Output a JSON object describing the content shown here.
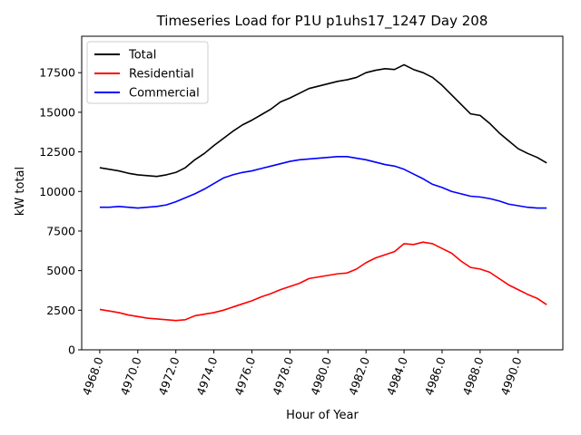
{
  "chart_data": {
    "type": "line",
    "title": "Timeseries Load for P1U p1uhs17_1247  Day 208",
    "xlabel": "Hour of Year",
    "ylabel": "kW total",
    "xlim": [
      4967.05,
      4992.35
    ],
    "ylim": [
      0,
      19800
    ],
    "xticks": [
      4968,
      4970,
      4972,
      4974,
      4976,
      4978,
      4980,
      4982,
      4984,
      4986,
      4988,
      4990
    ],
    "xtick_labels": [
      "4968.0",
      "4970.0",
      "4972.0",
      "4974.0",
      "4976.0",
      "4978.0",
      "4980.0",
      "4982.0",
      "4984.0",
      "4986.0",
      "4988.0",
      "4990.0"
    ],
    "yticks": [
      0,
      2500,
      5000,
      7500,
      10000,
      12500,
      15000,
      17500
    ],
    "ytick_labels": [
      "0",
      "2500",
      "5000",
      "7500",
      "10000",
      "12500",
      "15000",
      "17500"
    ],
    "legend_position": "upper-left",
    "x": [
      4968.0,
      4968.5,
      4969.0,
      4969.5,
      4970.0,
      4970.5,
      4971.0,
      4971.5,
      4972.0,
      4972.5,
      4973.0,
      4973.5,
      4974.0,
      4974.5,
      4975.0,
      4975.5,
      4976.0,
      4976.5,
      4977.0,
      4977.5,
      4978.0,
      4978.5,
      4979.0,
      4979.5,
      4980.0,
      4980.5,
      4981.0,
      4981.5,
      4982.0,
      4982.5,
      4983.0,
      4983.5,
      4984.0,
      4984.5,
      4985.0,
      4985.5,
      4986.0,
      4986.5,
      4987.0,
      4987.5,
      4988.0,
      4988.5,
      4989.0,
      4989.5,
      4990.0,
      4990.5,
      4991.0,
      4991.5
    ],
    "series": [
      {
        "name": "Total",
        "color": "#000000",
        "values": [
          11500,
          11400,
          11300,
          11150,
          11050,
          11000,
          10950,
          11050,
          11200,
          11500,
          12000,
          12400,
          12900,
          13350,
          13800,
          14200,
          14500,
          14850,
          15200,
          15650,
          15900,
          16200,
          16500,
          16650,
          16800,
          16950,
          17050,
          17200,
          17500,
          17650,
          17750,
          17700,
          18000,
          17700,
          17500,
          17200,
          16700,
          16100,
          15500,
          14900,
          14800,
          14300,
          13700,
          13200,
          12700,
          12400,
          12150,
          11800
        ]
      },
      {
        "name": "Residential",
        "color": "#ff0000",
        "values": [
          2550,
          2450,
          2350,
          2200,
          2100,
          2000,
          1950,
          1900,
          1850,
          1900,
          2150,
          2250,
          2350,
          2500,
          2700,
          2900,
          3100,
          3350,
          3550,
          3800,
          4000,
          4200,
          4500,
          4600,
          4700,
          4800,
          4850,
          5100,
          5500,
          5800,
          6000,
          6200,
          6700,
          6650,
          6800,
          6700,
          6400,
          6100,
          5600,
          5200,
          5100,
          4900,
          4500,
          4100,
          3800,
          3500,
          3250,
          2850
        ]
      },
      {
        "name": "Commercial",
        "color": "#0000ff",
        "values": [
          9000,
          9000,
          9050,
          9000,
          8950,
          9000,
          9050,
          9150,
          9350,
          9600,
          9850,
          10150,
          10500,
          10850,
          11050,
          11200,
          11300,
          11450,
          11600,
          11750,
          11900,
          12000,
          12050,
          12100,
          12150,
          12200,
          12200,
          12100,
          12000,
          11850,
          11700,
          11600,
          11400,
          11100,
          10800,
          10450,
          10250,
          10000,
          9850,
          9700,
          9650,
          9550,
          9400,
          9200,
          9100,
          9000,
          8950,
          8950
        ]
      }
    ]
  }
}
